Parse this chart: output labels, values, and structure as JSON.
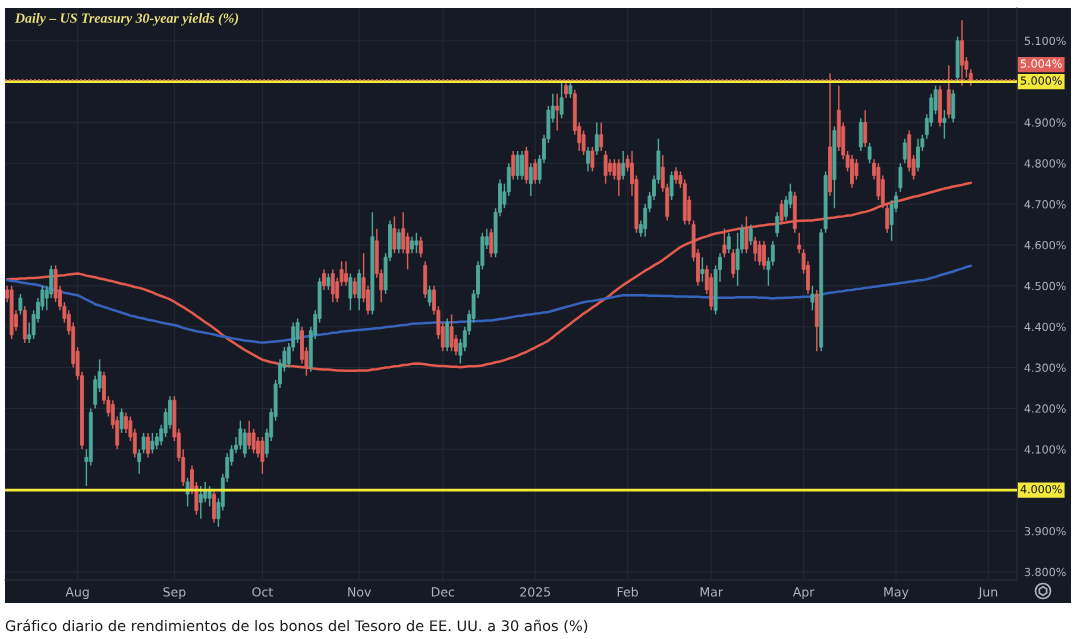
{
  "chart_data": {
    "type": "candlestick",
    "title": "Daily – US Treasury 30-year yields (%)",
    "categories": [
      null,
      null,
      null,
      null,
      null,
      null,
      null,
      null,
      null,
      null,
      null,
      null,
      null,
      null,
      null,
      null,
      "Aug",
      null,
      null,
      null,
      null,
      null,
      null,
      null,
      null,
      null,
      null,
      null,
      null,
      null,
      null,
      null,
      null,
      null,
      null,
      null,
      null,
      null,
      "Sep",
      null,
      null,
      null,
      null,
      null,
      null,
      null,
      null,
      null,
      null,
      null,
      null,
      null,
      null,
      null,
      null,
      null,
      null,
      null,
      "Oct",
      null,
      null,
      null,
      null,
      null,
      null,
      null,
      null,
      null,
      null,
      null,
      null,
      null,
      null,
      null,
      null,
      null,
      null,
      null,
      null,
      null,
      "Nov",
      null,
      null,
      null,
      null,
      null,
      null,
      null,
      null,
      null,
      null,
      null,
      null,
      null,
      null,
      null,
      null,
      null,
      null,
      "Dec",
      null,
      null,
      null,
      null,
      null,
      null,
      null,
      null,
      null,
      null,
      null,
      null,
      null,
      null,
      null,
      null,
      null,
      null,
      null,
      null,
      "2025",
      null,
      null,
      null,
      null,
      null,
      null,
      null,
      null,
      null,
      null,
      null,
      null,
      null,
      null,
      null,
      null,
      null,
      null,
      null,
      null,
      "Feb",
      null,
      null,
      null,
      null,
      null,
      null,
      null,
      null,
      null,
      null,
      null,
      null,
      null,
      null,
      null,
      null,
      null,
      null,
      "Mar",
      null,
      null,
      null,
      null,
      null,
      null,
      null,
      null,
      null,
      null,
      null,
      null,
      null,
      null,
      null,
      null,
      null,
      null,
      null,
      null,
      "Apr",
      null,
      null,
      null,
      null,
      null,
      null,
      null,
      null,
      null,
      null,
      null,
      null,
      null,
      null,
      null,
      null,
      null,
      null,
      null,
      null,
      "May",
      null,
      null,
      null,
      null,
      null,
      null,
      null,
      null,
      null,
      null,
      null,
      null,
      null,
      null,
      null,
      null,
      null,
      null,
      null,
      null,
      "Jun",
      null,
      null,
      null,
      null,
      null,
      null
    ],
    "ohlc": [
      [
        4.49,
        4.5,
        4.46,
        4.47
      ],
      [
        4.49,
        4.5,
        4.37,
        4.38
      ],
      [
        4.43,
        4.44,
        4.39,
        4.4
      ],
      [
        4.44,
        4.48,
        4.43,
        4.47
      ],
      [
        4.44,
        4.45,
        4.36,
        4.37
      ],
      [
        4.37,
        4.41,
        4.36,
        4.38
      ],
      [
        4.38,
        4.44,
        4.37,
        4.43
      ],
      [
        4.42,
        4.47,
        4.41,
        4.46
      ],
      [
        4.45,
        4.5,
        4.44,
        4.49
      ],
      [
        4.47,
        4.5,
        4.44,
        4.49
      ],
      [
        4.48,
        4.55,
        4.47,
        4.54
      ],
      [
        4.54,
        4.55,
        4.46,
        4.47
      ],
      [
        4.49,
        4.5,
        4.44,
        4.45
      ],
      [
        4.45,
        4.46,
        4.41,
        4.42
      ],
      [
        4.43,
        4.44,
        4.38,
        4.39
      ],
      [
        4.4,
        4.41,
        4.3,
        4.31
      ],
      [
        4.34,
        4.35,
        4.27,
        4.28
      ],
      [
        4.28,
        4.29,
        4.1,
        4.11
      ],
      [
        4.07,
        4.1,
        4.01,
        4.08
      ],
      [
        4.07,
        4.2,
        4.06,
        4.19
      ],
      [
        4.21,
        4.28,
        4.2,
        4.27
      ],
      [
        4.25,
        4.32,
        4.24,
        4.29
      ],
      [
        4.28,
        4.29,
        4.21,
        4.22
      ],
      [
        4.22,
        4.23,
        4.18,
        4.19
      ],
      [
        4.21,
        4.22,
        4.15,
        4.16
      ],
      [
        4.17,
        4.18,
        4.1,
        4.11
      ],
      [
        4.15,
        4.2,
        4.14,
        4.19
      ],
      [
        4.18,
        4.19,
        4.14,
        4.15
      ],
      [
        4.17,
        4.18,
        4.12,
        4.13
      ],
      [
        4.14,
        4.15,
        4.08,
        4.09
      ],
      [
        4.07,
        4.1,
        4.04,
        4.09
      ],
      [
        4.1,
        4.14,
        4.09,
        4.13
      ],
      [
        4.13,
        4.14,
        4.08,
        4.09
      ],
      [
        4.1,
        4.14,
        4.09,
        4.12
      ],
      [
        4.11,
        4.14,
        4.1,
        4.13
      ],
      [
        4.12,
        4.16,
        4.11,
        4.15
      ],
      [
        4.14,
        4.2,
        4.13,
        4.19
      ],
      [
        4.16,
        4.23,
        4.15,
        4.22
      ],
      [
        4.22,
        4.23,
        4.12,
        4.13
      ],
      [
        4.14,
        4.15,
        4.07,
        4.08
      ],
      [
        4.08,
        4.1,
        4.01,
        4.02
      ],
      [
        3.99,
        4.03,
        3.96,
        4.02
      ],
      [
        4.05,
        4.06,
        3.99,
        4.0
      ],
      [
        4.01,
        4.02,
        3.94,
        3.95
      ],
      [
        3.97,
        4.01,
        3.93,
        3.99
      ],
      [
        3.98,
        4.02,
        3.97,
        4.0
      ],
      [
        3.98,
        4.01,
        3.96,
        4.0
      ],
      [
        3.99,
        4.0,
        3.92,
        3.93
      ],
      [
        3.93,
        3.98,
        3.91,
        3.97
      ],
      [
        3.96,
        4.04,
        3.95,
        4.03
      ],
      [
        4.03,
        4.09,
        4.02,
        4.08
      ],
      [
        4.07,
        4.11,
        4.06,
        4.1
      ],
      [
        4.1,
        4.13,
        4.09,
        4.11
      ],
      [
        4.11,
        4.17,
        4.1,
        4.15
      ],
      [
        4.09,
        4.15,
        4.08,
        4.14
      ],
      [
        4.14,
        4.17,
        4.1,
        4.11
      ],
      [
        4.14,
        4.15,
        4.09,
        4.1
      ],
      [
        4.12,
        4.13,
        4.08,
        4.09
      ],
      [
        4.12,
        4.13,
        4.04,
        4.07
      ],
      [
        4.09,
        4.15,
        4.08,
        4.14
      ],
      [
        4.13,
        4.2,
        4.12,
        4.19
      ],
      [
        4.18,
        4.27,
        4.17,
        4.26
      ],
      [
        4.26,
        4.32,
        4.25,
        4.31
      ],
      [
        4.3,
        4.35,
        4.29,
        4.34
      ],
      [
        4.31,
        4.36,
        4.3,
        4.35
      ],
      [
        4.35,
        4.41,
        4.34,
        4.4
      ],
      [
        4.37,
        4.42,
        4.36,
        4.41
      ],
      [
        4.39,
        4.4,
        4.31,
        4.32
      ],
      [
        4.34,
        4.35,
        4.28,
        4.3
      ],
      [
        4.3,
        4.4,
        4.29,
        4.39
      ],
      [
        4.38,
        4.44,
        4.37,
        4.43
      ],
      [
        4.42,
        4.52,
        4.41,
        4.51
      ],
      [
        4.53,
        4.54,
        4.49,
        4.5
      ],
      [
        4.5,
        4.53,
        4.49,
        4.52
      ],
      [
        4.53,
        4.54,
        4.46,
        4.48
      ],
      [
        4.51,
        4.52,
        4.46,
        4.47
      ],
      [
        4.54,
        4.56,
        4.5,
        4.51
      ],
      [
        4.53,
        4.56,
        4.5,
        4.51
      ],
      [
        4.47,
        4.53,
        4.44,
        4.52
      ],
      [
        4.51,
        4.52,
        4.47,
        4.48
      ],
      [
        4.47,
        4.54,
        4.44,
        4.53
      ],
      [
        4.52,
        4.58,
        4.46,
        4.47
      ],
      [
        4.49,
        4.5,
        4.43,
        4.44
      ],
      [
        4.44,
        4.68,
        4.43,
        4.62
      ],
      [
        4.61,
        4.64,
        4.52,
        4.53
      ],
      [
        4.53,
        4.54,
        4.46,
        4.49
      ],
      [
        4.49,
        4.58,
        4.48,
        4.57
      ],
      [
        4.57,
        4.66,
        4.56,
        4.65
      ],
      [
        4.64,
        4.67,
        4.58,
        4.59
      ],
      [
        4.59,
        4.64,
        4.58,
        4.63
      ],
      [
        4.64,
        4.68,
        4.58,
        4.59
      ],
      [
        4.62,
        4.63,
        4.54,
        4.58
      ],
      [
        4.59,
        4.62,
        4.58,
        4.61
      ],
      [
        4.6,
        4.63,
        4.58,
        4.61
      ],
      [
        4.61,
        4.62,
        4.57,
        4.58
      ],
      [
        4.55,
        4.56,
        4.47,
        4.48
      ],
      [
        4.46,
        4.5,
        4.45,
        4.49
      ],
      [
        4.49,
        4.5,
        4.43,
        4.44
      ],
      [
        4.44,
        4.45,
        4.37,
        4.38
      ],
      [
        4.4,
        4.41,
        4.34,
        4.35
      ],
      [
        4.35,
        4.42,
        4.34,
        4.41
      ],
      [
        4.4,
        4.43,
        4.34,
        4.35
      ],
      [
        4.37,
        4.38,
        4.33,
        4.34
      ],
      [
        4.33,
        4.37,
        4.31,
        4.36
      ],
      [
        4.35,
        4.4,
        4.34,
        4.39
      ],
      [
        4.39,
        4.44,
        4.38,
        4.43
      ],
      [
        4.42,
        4.49,
        4.41,
        4.48
      ],
      [
        4.48,
        4.56,
        4.47,
        4.55
      ],
      [
        4.55,
        4.63,
        4.54,
        4.62
      ],
      [
        4.6,
        4.64,
        4.59,
        4.62
      ],
      [
        4.63,
        4.64,
        4.57,
        4.58
      ],
      [
        4.58,
        4.69,
        4.57,
        4.68
      ],
      [
        4.68,
        4.76,
        4.67,
        4.75
      ],
      [
        4.7,
        4.75,
        4.69,
        4.73
      ],
      [
        4.73,
        4.8,
        4.72,
        4.79
      ],
      [
        4.82,
        4.83,
        4.76,
        4.77
      ],
      [
        4.77,
        4.83,
        4.76,
        4.82
      ],
      [
        4.77,
        4.83,
        4.76,
        4.82
      ],
      [
        4.83,
        4.84,
        4.75,
        4.76
      ],
      [
        4.75,
        4.8,
        4.72,
        4.79
      ],
      [
        4.8,
        4.81,
        4.75,
        4.76
      ],
      [
        4.76,
        4.82,
        4.75,
        4.81
      ],
      [
        4.81,
        4.87,
        4.8,
        4.86
      ],
      [
        4.86,
        4.94,
        4.85,
        4.93
      ],
      [
        4.91,
        4.97,
        4.9,
        4.94
      ],
      [
        4.94,
        4.97,
        4.88,
        4.93
      ],
      [
        4.92,
        5.0,
        4.91,
        4.96
      ],
      [
        4.99,
        5.0,
        4.96,
        4.97
      ],
      [
        4.97,
        5.0,
        4.96,
        4.99
      ],
      [
        4.97,
        4.98,
        4.87,
        4.88
      ],
      [
        4.89,
        4.9,
        4.83,
        4.85
      ],
      [
        4.87,
        4.88,
        4.82,
        4.83
      ],
      [
        4.8,
        4.84,
        4.78,
        4.83
      ],
      [
        4.83,
        4.84,
        4.78,
        4.79
      ],
      [
        4.83,
        4.9,
        4.82,
        4.87
      ],
      [
        4.87,
        4.9,
        4.83,
        4.84
      ],
      [
        4.82,
        4.83,
        4.75,
        4.77
      ],
      [
        4.8,
        4.81,
        4.77,
        4.78
      ],
      [
        4.8,
        4.81,
        4.76,
        4.77
      ],
      [
        4.8,
        4.81,
        4.72,
        4.76
      ],
      [
        4.77,
        4.83,
        4.76,
        4.8
      ],
      [
        4.81,
        4.82,
        4.78,
        4.79
      ],
      [
        4.8,
        4.83,
        4.72,
        4.75
      ],
      [
        4.76,
        4.77,
        4.63,
        4.64
      ],
      [
        4.63,
        4.66,
        4.62,
        4.65
      ],
      [
        4.64,
        4.7,
        4.62,
        4.69
      ],
      [
        4.69,
        4.73,
        4.68,
        4.72
      ],
      [
        4.72,
        4.77,
        4.71,
        4.76
      ],
      [
        4.76,
        4.86,
        4.75,
        4.83
      ],
      [
        4.79,
        4.82,
        4.73,
        4.74
      ],
      [
        4.74,
        4.75,
        4.66,
        4.67
      ],
      [
        4.72,
        4.78,
        4.71,
        4.77
      ],
      [
        4.78,
        4.79,
        4.75,
        4.76
      ],
      [
        4.77,
        4.78,
        4.74,
        4.75
      ],
      [
        4.75,
        4.76,
        4.65,
        4.66
      ],
      [
        4.71,
        4.72,
        4.65,
        4.66
      ],
      [
        4.65,
        4.66,
        4.56,
        4.57
      ],
      [
        4.58,
        4.59,
        4.5,
        4.51
      ],
      [
        4.53,
        4.57,
        4.51,
        4.54
      ],
      [
        4.54,
        4.55,
        4.48,
        4.49
      ],
      [
        4.52,
        4.53,
        4.44,
        4.45
      ],
      [
        4.44,
        4.55,
        4.43,
        4.54
      ],
      [
        4.54,
        4.58,
        4.51,
        4.57
      ],
      [
        4.6,
        4.64,
        4.57,
        4.58
      ],
      [
        4.59,
        4.63,
        4.58,
        4.62
      ],
      [
        4.58,
        4.59,
        4.52,
        4.53
      ],
      [
        4.54,
        4.63,
        4.5,
        4.59
      ],
      [
        4.59,
        4.65,
        4.58,
        4.64
      ],
      [
        4.64,
        4.67,
        4.58,
        4.59
      ],
      [
        4.61,
        4.65,
        4.6,
        4.64
      ],
      [
        4.61,
        4.62,
        4.56,
        4.58
      ],
      [
        4.6,
        4.61,
        4.55,
        4.56
      ],
      [
        4.6,
        4.61,
        4.54,
        4.55
      ],
      [
        4.54,
        4.57,
        4.5,
        4.56
      ],
      [
        4.56,
        4.61,
        4.55,
        4.6
      ],
      [
        4.63,
        4.68,
        4.62,
        4.67
      ],
      [
        4.7,
        4.71,
        4.65,
        4.66
      ],
      [
        4.67,
        4.72,
        4.66,
        4.71
      ],
      [
        4.7,
        4.75,
        4.69,
        4.73
      ],
      [
        4.72,
        4.73,
        4.63,
        4.64
      ],
      [
        4.6,
        4.63,
        4.58,
        4.59
      ],
      [
        4.58,
        4.59,
        4.53,
        4.54
      ],
      [
        4.55,
        4.56,
        4.48,
        4.49
      ],
      [
        4.46,
        4.5,
        4.44,
        4.48
      ],
      [
        4.48,
        4.49,
        4.34,
        4.4
      ],
      [
        4.35,
        4.64,
        4.34,
        4.63
      ],
      [
        4.64,
        4.78,
        4.63,
        4.77
      ],
      [
        4.84,
        5.02,
        4.72,
        4.73
      ],
      [
        4.76,
        4.89,
        4.69,
        4.88
      ],
      [
        4.93,
        4.99,
        4.83,
        4.84
      ],
      [
        4.89,
        4.9,
        4.81,
        4.82
      ],
      [
        4.82,
        4.83,
        4.78,
        4.79
      ],
      [
        4.81,
        4.82,
        4.74,
        4.75
      ],
      [
        4.8,
        4.81,
        4.76,
        4.77
      ],
      [
        4.84,
        4.91,
        4.83,
        4.9
      ],
      [
        4.9,
        4.93,
        4.84,
        4.85
      ],
      [
        4.81,
        4.85,
        4.8,
        4.84
      ],
      [
        4.8,
        4.81,
        4.76,
        4.77
      ],
      [
        4.79,
        4.8,
        4.71,
        4.72
      ],
      [
        4.76,
        4.77,
        4.69,
        4.7
      ],
      [
        4.69,
        4.7,
        4.63,
        4.64
      ],
      [
        4.65,
        4.71,
        4.61,
        4.7
      ],
      [
        4.69,
        4.73,
        4.68,
        4.72
      ],
      [
        4.74,
        4.8,
        4.73,
        4.79
      ],
      [
        4.81,
        4.86,
        4.8,
        4.85
      ],
      [
        4.87,
        4.88,
        4.78,
        4.79
      ],
      [
        4.81,
        4.82,
        4.76,
        4.77
      ],
      [
        4.79,
        4.86,
        4.78,
        4.84
      ],
      [
        4.84,
        4.87,
        4.83,
        4.86
      ],
      [
        4.87,
        4.92,
        4.86,
        4.91
      ],
      [
        4.9,
        4.97,
        4.89,
        4.96
      ],
      [
        4.93,
        4.99,
        4.92,
        4.98
      ],
      [
        4.98,
        4.99,
        4.89,
        4.9
      ],
      [
        4.9,
        4.93,
        4.86,
        4.91
      ],
      [
        4.98,
        5.04,
        4.91,
        4.92
      ],
      [
        4.91,
        4.98,
        4.9,
        4.97
      ],
      [
        5.01,
        5.11,
        5.0,
        5.1
      ],
      [
        5.1,
        5.15,
        4.99,
        5.04
      ],
      [
        5.05,
        5.06,
        5.01,
        5.03
      ],
      [
        5.02,
        5.03,
        4.99,
        5.004
      ],
      null,
      null,
      null,
      null,
      null,
      null,
      null,
      null,
      null,
      null
    ],
    "colors": [
      "#e05f5a",
      "#e05f5a",
      "#e05f5a",
      "#4fa99b",
      "#e05f5a",
      "#4fa99b",
      "#4fa99b",
      "#4fa99b",
      "#4fa99b",
      "#4fa99b",
      "#4fa99b",
      "#e05f5a",
      "#e05f5a",
      "#e05f5a",
      "#e05f5a",
      "#e05f5a",
      "#e05f5a",
      "#e05f5a",
      "#4fa99b",
      "#4fa99b",
      "#4fa99b",
      "#4fa99b",
      "#e05f5a",
      "#e05f5a",
      "#e05f5a",
      "#e05f5a",
      "#4fa99b",
      "#e05f5a",
      "#e05f5a",
      "#e05f5a",
      "#4fa99b",
      "#4fa99b",
      "#e05f5a",
      "#4fa99b",
      "#4fa99b",
      "#4fa99b",
      "#4fa99b",
      "#4fa99b",
      "#e05f5a",
      "#e05f5a",
      "#e05f5a",
      "#4fa99b",
      "#e05f5a",
      "#e05f5a",
      "#4fa99b",
      "#4fa99b",
      "#4fa99b",
      "#e05f5a",
      "#4fa99b",
      "#4fa99b",
      "#4fa99b",
      "#4fa99b",
      "#4fa99b",
      "#4fa99b",
      "#4fa99b",
      "#e05f5a",
      "#e05f5a",
      "#e05f5a",
      "#e05f5a",
      "#4fa99b",
      "#4fa99b",
      "#4fa99b",
      "#4fa99b",
      "#4fa99b",
      "#4fa99b",
      "#4fa99b",
      "#4fa99b",
      "#e05f5a",
      "#e05f5a",
      "#4fa99b",
      "#4fa99b",
      "#4fa99b",
      "#e05f5a",
      "#4fa99b",
      "#e05f5a",
      "#e05f5a",
      "#e05f5a",
      "#e05f5a",
      "#4fa99b",
      "#e05f5a",
      "#4fa99b",
      "#e05f5a",
      "#e05f5a",
      "#4fa99b",
      "#e05f5a",
      "#e05f5a",
      "#4fa99b",
      "#4fa99b",
      "#e05f5a",
      "#4fa99b",
      "#e05f5a",
      "#e05f5a",
      "#4fa99b",
      "#4fa99b",
      "#e05f5a",
      "#e05f5a",
      "#4fa99b",
      "#e05f5a",
      "#e05f5a",
      "#e05f5a",
      "#4fa99b",
      "#e05f5a",
      "#e05f5a",
      "#4fa99b",
      "#4fa99b",
      "#4fa99b",
      "#4fa99b",
      "#4fa99b",
      "#4fa99b",
      "#4fa99b",
      "#e05f5a",
      "#4fa99b",
      "#4fa99b",
      "#4fa99b",
      "#4fa99b",
      "#e05f5a",
      "#4fa99b",
      "#4fa99b",
      "#e05f5a",
      "#4fa99b",
      "#e05f5a",
      "#4fa99b",
      "#4fa99b",
      "#4fa99b",
      "#4fa99b",
      "#e05f5a",
      "#4fa99b",
      "#e05f5a",
      "#4fa99b",
      "#e05f5a",
      "#e05f5a",
      "#e05f5a",
      "#4fa99b",
      "#e05f5a",
      "#4fa99b",
      "#e05f5a",
      "#e05f5a",
      "#e05f5a",
      "#e05f5a",
      "#e05f5a",
      "#4fa99b",
      "#e05f5a",
      "#e05f5a",
      "#e05f5a",
      "#4fa99b",
      "#4fa99b",
      "#4fa99b",
      "#4fa99b",
      "#4fa99b",
      "#e05f5a",
      "#e05f5a",
      "#4fa99b",
      "#e05f5a",
      "#e05f5a",
      "#e05f5a",
      "#e05f5a",
      "#e05f5a",
      "#e05f5a",
      "#4fa99b",
      "#e05f5a",
      "#e05f5a",
      "#4fa99b",
      "#4fa99b",
      "#e05f5a",
      "#4fa99b",
      "#e05f5a",
      "#4fa99b",
      "#4fa99b",
      "#e05f5a",
      "#4fa99b",
      "#e05f5a",
      "#e05f5a",
      "#e05f5a",
      "#4fa99b",
      "#4fa99b",
      "#4fa99b",
      "#e05f5a",
      "#4fa99b",
      "#4fa99b",
      "#e05f5a",
      "#e05f5a",
      "#e05f5a",
      "#e05f5a",
      "#4fa99b",
      "#e05f5a",
      "#4fa99b",
      "#4fa99b",
      "#e05f5a",
      "#4fa99b",
      "#e05f5a",
      "#e05f5a",
      "#e05f5a",
      "#e05f5a",
      "#e05f5a",
      "#4fa99b",
      "#e05f5a",
      "#4fa99b",
      "#e05f5a",
      "#e05f5a",
      "#e05f5a",
      "#e05f5a",
      "#4fa99b",
      "#4fa99b",
      "#4fa99b",
      "#4fa99b",
      "#e05f5a",
      "#e05f5a",
      "#4fa99b",
      "#4fa99b",
      "#4fa99b",
      "#4fa99b",
      "#4fa99b",
      "#e05f5a",
      "#4fa99b",
      "#e05f5a",
      "#4fa99b",
      "#4fa99b",
      "#e05f5a",
      "#e05f5a",
      "#e05f5a",
      null,
      null,
      null,
      null,
      null,
      null,
      null,
      null,
      null,
      null
    ],
    "series": [
      {
        "type": "line",
        "color": "#e35a4f",
        "values": [
          4.516,
          4.517,
          4.517,
          4.518,
          4.518,
          4.519,
          4.519,
          4.52,
          4.521,
          4.522,
          4.523,
          4.524,
          4.525,
          4.526,
          4.528,
          4.529,
          4.53,
          4.528,
          4.525,
          4.523,
          4.521,
          4.518,
          4.516,
          4.513,
          4.511,
          4.508,
          4.505,
          4.503,
          4.5,
          4.497,
          4.495,
          4.492,
          4.488,
          4.484,
          4.479,
          4.475,
          4.471,
          4.467,
          4.461,
          4.454,
          4.448,
          4.441,
          4.434,
          4.426,
          4.419,
          4.411,
          4.404,
          4.396,
          4.388,
          4.379,
          4.371,
          4.364,
          4.357,
          4.35,
          4.343,
          4.337,
          4.331,
          4.325,
          4.319,
          4.316,
          4.313,
          4.311,
          4.308,
          4.305,
          4.304,
          4.303,
          4.302,
          4.301,
          4.3,
          4.298,
          4.297,
          4.296,
          4.295,
          4.295,
          4.294,
          4.293,
          4.293,
          4.292,
          4.292,
          4.292,
          4.293,
          4.293,
          4.293,
          4.295,
          4.296,
          4.298,
          4.3,
          4.301,
          4.303,
          4.304,
          4.306,
          4.307,
          4.309,
          4.31,
          4.309,
          4.308,
          4.306,
          4.305,
          4.304,
          4.304,
          4.303,
          4.302,
          4.302,
          4.301,
          4.302,
          4.303,
          4.303,
          4.304,
          4.305,
          4.308,
          4.31,
          4.313,
          4.315,
          4.318,
          4.322,
          4.325,
          4.329,
          4.334,
          4.338,
          4.344,
          4.349,
          4.355,
          4.36,
          4.366,
          4.374,
          4.383,
          4.391,
          4.399,
          4.407,
          4.416,
          4.424,
          4.432,
          4.439,
          4.447,
          4.454,
          4.462,
          4.469,
          4.477,
          4.486,
          4.494,
          4.502,
          4.509,
          4.516,
          4.523,
          4.53,
          4.537,
          4.543,
          4.55,
          4.556,
          4.563,
          4.571,
          4.579,
          4.587,
          4.595,
          4.6,
          4.605,
          4.609,
          4.614,
          4.618,
          4.621,
          4.625,
          4.628,
          4.63,
          4.632,
          4.635,
          4.637,
          4.639,
          4.641,
          4.642,
          4.644,
          4.645,
          4.647,
          4.648,
          4.65,
          4.651,
          4.652,
          4.654,
          4.655,
          4.657,
          4.658,
          4.659,
          4.659,
          4.66,
          4.66,
          4.662,
          4.663,
          4.665,
          4.666,
          4.667,
          4.669,
          4.67,
          4.672,
          4.673,
          4.676,
          4.679,
          4.681,
          4.684,
          4.688,
          4.693,
          4.697,
          4.701,
          4.704,
          4.707,
          4.709,
          4.712,
          4.715,
          4.718,
          4.72,
          4.723,
          4.726,
          4.729,
          4.732,
          4.735,
          4.738,
          4.74,
          4.743,
          4.745,
          4.747,
          4.75,
          4.752,
          null,
          null,
          null,
          null,
          null,
          null,
          null,
          null,
          null,
          null
        ]
      },
      {
        "type": "line",
        "color": "#3763bd",
        "values": [
          4.514,
          4.512,
          4.511,
          4.509,
          4.507,
          4.505,
          4.504,
          4.502,
          4.499,
          4.495,
          4.492,
          null,
          4.486,
          4.483,
          4.481,
          4.479,
          4.477,
          4.472,
          4.466,
          4.461,
          4.455,
          4.452,
          4.448,
          4.445,
          4.441,
          4.438,
          4.434,
          4.431,
          4.427,
          4.425,
          4.422,
          4.42,
          4.417,
          4.415,
          4.413,
          4.41,
          4.408,
          4.406,
          4.404,
          4.401,
          4.397,
          4.394,
          4.392,
          4.389,
          4.387,
          4.385,
          4.383,
          4.381,
          4.378,
          4.376,
          4.374,
          4.372,
          4.37,
          4.368,
          4.366,
          4.365,
          4.364,
          4.362,
          4.361,
          4.362,
          4.363,
          4.364,
          4.365,
          4.366,
          4.368,
          4.37,
          4.372,
          4.374,
          4.376,
          4.377,
          4.379,
          4.38,
          4.382,
          4.383,
          4.385,
          4.386,
          4.388,
          4.389,
          4.39,
          4.391,
          4.392,
          4.393,
          4.394,
          4.395,
          4.396,
          4.397,
          4.399,
          4.4,
          4.401,
          4.403,
          4.404,
          4.405,
          4.407,
          4.408,
          4.408,
          4.409,
          4.409,
          4.41,
          4.41,
          4.41,
          4.411,
          4.411,
          4.411,
          4.412,
          4.412,
          4.413,
          4.413,
          4.414,
          4.414,
          4.415,
          4.415,
          4.417,
          4.419,
          4.42,
          4.422,
          4.424,
          4.426,
          4.427,
          4.429,
          4.43,
          4.432,
          4.433,
          4.435,
          4.436,
          4.439,
          4.442,
          4.445,
          4.448,
          4.451,
          4.454,
          4.457,
          4.46,
          4.462,
          4.463,
          4.465,
          4.467,
          4.469,
          4.471,
          4.473,
          4.475,
          4.477,
          4.477,
          4.477,
          4.477,
          4.477,
          4.477,
          4.476,
          4.476,
          4.476,
          4.475,
          4.475,
          4.475,
          4.474,
          4.474,
          4.474,
          4.473,
          4.473,
          4.473,
          4.472,
          4.472,
          4.471,
          4.471,
          4.471,
          4.471,
          4.471,
          4.471,
          4.472,
          4.472,
          4.472,
          4.472,
          4.472,
          4.471,
          4.471,
          4.47,
          4.469,
          4.47,
          4.47,
          4.471,
          4.471,
          4.472,
          4.472,
          4.473,
          4.473,
          4.474,
          4.476,
          4.478,
          4.481,
          4.483,
          4.484,
          4.486,
          4.487,
          4.489,
          4.49,
          4.492,
          4.493,
          4.495,
          4.496,
          4.498,
          4.499,
          4.501,
          4.502,
          4.504,
          4.505,
          4.507,
          4.508,
          4.51,
          4.511,
          4.513,
          4.514,
          4.516,
          4.519,
          4.522,
          4.526,
          4.529,
          4.532,
          4.535,
          4.539,
          4.542,
          4.546,
          4.549,
          null,
          null,
          null,
          null,
          null,
          null,
          null,
          null,
          null,
          null
        ]
      }
    ],
    "ylim": [
      3.78,
      5.18
    ],
    "yticks": [
      {
        "value": 3.8,
        "label": "3.800%"
      },
      {
        "value": 3.9,
        "label": "3.900%"
      },
      {
        "value": 4.1,
        "label": "4.100%"
      },
      {
        "value": 4.2,
        "label": "4.200%"
      },
      {
        "value": 4.3,
        "label": "4.300%"
      },
      {
        "value": 4.4,
        "label": "4.400%"
      },
      {
        "value": 4.5,
        "label": "4.500%"
      },
      {
        "value": 4.6,
        "label": "4.600%"
      },
      {
        "value": 4.7,
        "label": "4.700%"
      },
      {
        "value": 4.8,
        "label": "4.800%"
      },
      {
        "value": 4.9,
        "label": "4.900%"
      },
      {
        "value": 5.1,
        "label": "5.100%"
      }
    ],
    "ref_lines": [
      {
        "axis": "y",
        "value": 5.0,
        "label": "5.000%",
        "color": "#f3e83c"
      },
      {
        "axis": "y",
        "value": 4.0,
        "label": "4.000%",
        "color": "#f3e83c"
      },
      {
        "axis": "y",
        "value": 5.004,
        "label": "5.004%",
        "color": "#e05f5a",
        "line_style": "dotted"
      }
    ],
    "annotations": [
      "Gráfico diario de rendimientos de los bonos del Tesoro de EE. UU. a 30 años (%)"
    ],
    "grid": true
  }
}
